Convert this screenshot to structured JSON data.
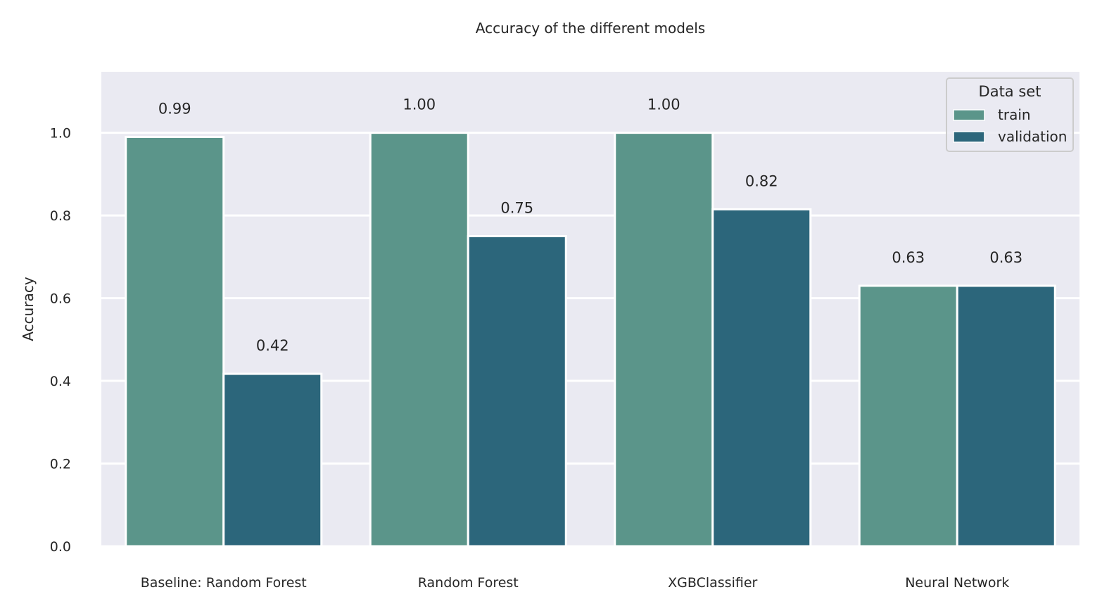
{
  "chart_data": {
    "type": "bar",
    "title": "Accuracy of the different models",
    "xlabel": "",
    "ylabel": "Accuracy",
    "categories": [
      "Baseline: Random Forest",
      "Random Forest",
      "XGBClassifier",
      "Neural Network"
    ],
    "series": [
      {
        "name": "train",
        "values": [
          0.99,
          1.0,
          1.0,
          0.63
        ],
        "labels": [
          "0.99",
          "1.00",
          "1.00",
          "0.63"
        ],
        "color": "#5b958a"
      },
      {
        "name": "validation",
        "values": [
          0.417,
          0.75,
          0.815,
          0.63
        ],
        "labels": [
          "0.42",
          "0.75",
          "0.82",
          "0.63"
        ],
        "color": "#2c667b"
      }
    ],
    "ylim": [
      0,
      1.1475
    ],
    "yticks": [
      0.0,
      0.2,
      0.4,
      0.6,
      0.8,
      1.0
    ],
    "ytick_labels": [
      "0.0",
      "0.2",
      "0.4",
      "0.6",
      "0.8",
      "1.0"
    ],
    "grid": true,
    "legend": {
      "title": "Data set",
      "placement": "upper right"
    },
    "colors": {
      "plot_background": "#eaeaf2",
      "grid": "#ffffff",
      "text": "#262626"
    }
  }
}
